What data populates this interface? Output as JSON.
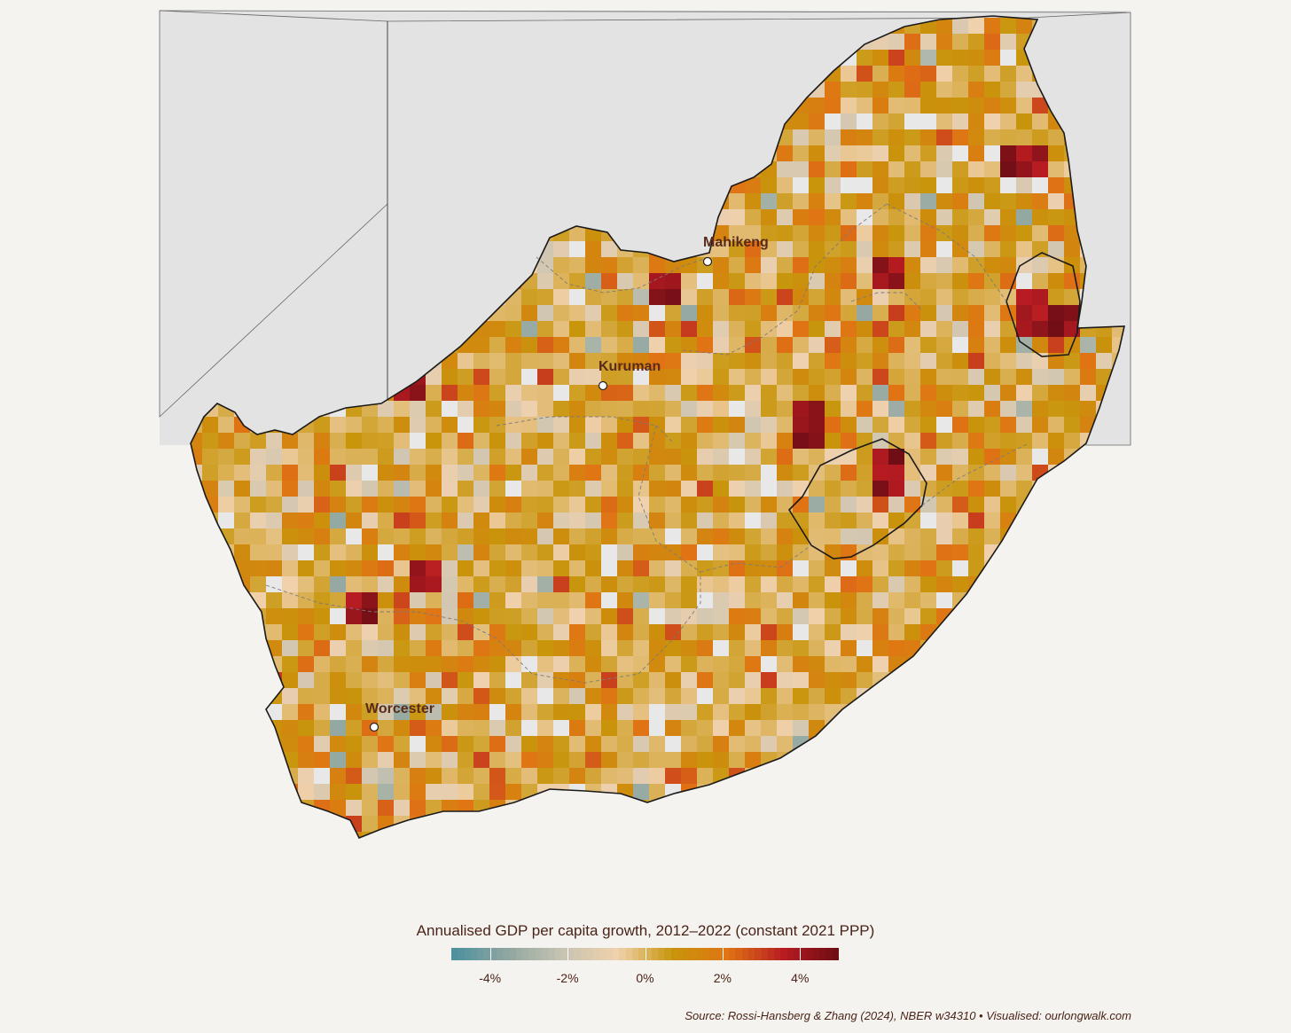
{
  "map": {
    "country": "South Africa",
    "region": "Southern Africa",
    "style": "choropleth grid",
    "cities": [
      {
        "name": "Mahikeng"
      },
      {
        "name": "Kuruman"
      },
      {
        "name": "Worcester"
      }
    ],
    "colors": {
      "background": "#f5f3ef",
      "neighbour_land": "#e3e3e3",
      "no_data": "#e8e8e8",
      "border": "#1a1a1a",
      "province_border": "#7a7a7a",
      "label": "#5a2a1a"
    }
  },
  "legend": {
    "title": "Annualised GDP per capita growth, 2012–2022 (constant 2021 PPP)",
    "range": [
      -5,
      5
    ],
    "tick_values": [
      -4,
      -2,
      0,
      2,
      4
    ],
    "tick_labels": [
      "-4%",
      "-2%",
      "0%",
      "2%",
      "4%"
    ],
    "palette": [
      "#4a8f9e",
      "#8fa6a0",
      "#c7c3b2",
      "#f0d1ad",
      "#c8950b",
      "#e07414",
      "#b81c22",
      "#6b0d14"
    ]
  },
  "source": "Source: Rossi-Hansberg & Zhang (2024), NBER w34310 • Visualised: ourlongwalk.com"
}
